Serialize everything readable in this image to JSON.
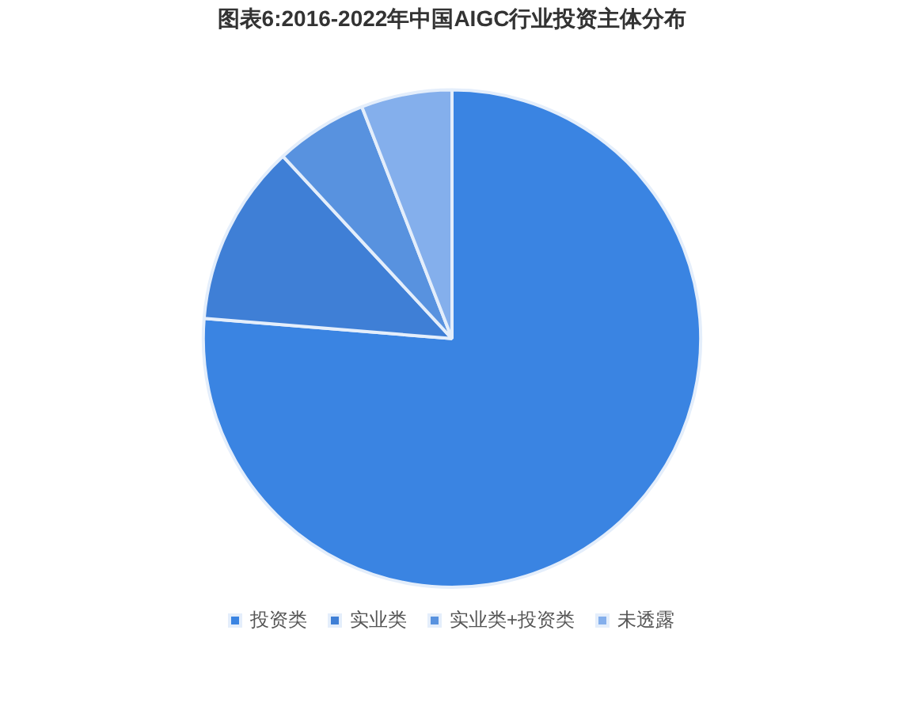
{
  "chart_data": {
    "type": "pie",
    "title": "图表6:2016-2022年中国AIGC行业投资主体分布",
    "categories": [
      "投资类",
      "实业类",
      "实业类+投资类",
      "未透露"
    ],
    "values": [
      76.3,
      11.8,
      6.0,
      5.9
    ],
    "colors": [
      "#3a84e2",
      "#3f7fd6",
      "#5892df",
      "#84afec"
    ],
    "legend": "bottom"
  }
}
